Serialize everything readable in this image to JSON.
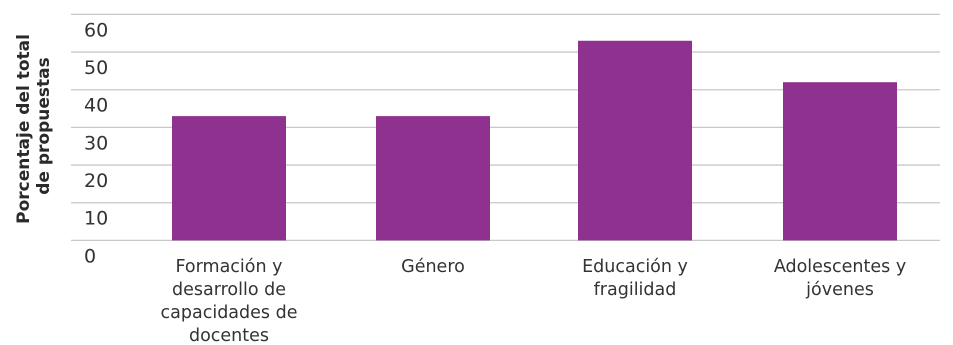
{
  "chart_data": {
    "type": "bar",
    "title": "",
    "xlabel": "",
    "ylabel": "Porcentaje del total de propuestas",
    "ylabel_lines": [
      "Porcentaje del total",
      "de propuestas"
    ],
    "categories": [
      "Formación y desarrollo de capacidades de docentes",
      "Género",
      "Educación y fragilidad",
      "Adolescentes y jóvenes"
    ],
    "category_label_lines": [
      [
        "Formación y",
        "desarrollo de",
        "capacidades de",
        "docentes"
      ],
      [
        "Género"
      ],
      [
        "Educación y",
        "fragilidad"
      ],
      [
        "Adolescentes y",
        "jóvenes"
      ]
    ],
    "values": [
      33,
      33,
      53,
      42
    ],
    "ylim": [
      0,
      60
    ],
    "yticks": [
      0,
      10,
      20,
      30,
      40,
      50,
      60
    ],
    "grid": true,
    "legend": "none",
    "bar_color": "#8e318f",
    "grid_color": "#c8c8c8"
  }
}
